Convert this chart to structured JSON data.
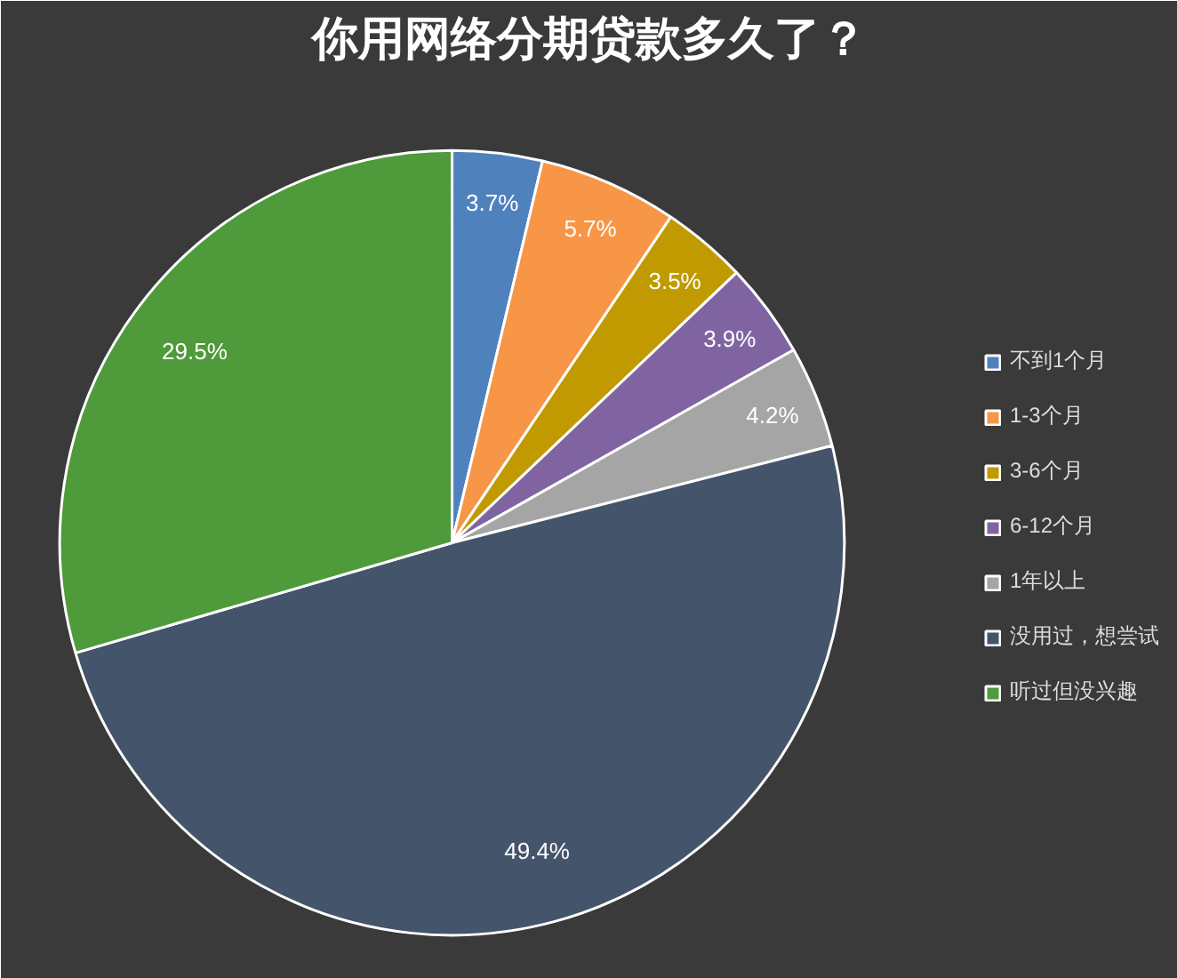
{
  "chart_data": {
    "type": "pie",
    "title": "你用网络分期贷款多久了？",
    "categories": [
      "不到1个月",
      "1-3个月",
      "3-6个月",
      "6-12个月",
      "1年以上",
      "没用过，想尝试",
      "听过但没兴趣"
    ],
    "values": [
      3.7,
      5.7,
      3.5,
      3.9,
      4.2,
      49.4,
      29.5
    ],
    "value_labels": [
      "3.7%",
      "5.7%",
      "3.5%",
      "3.9%",
      "4.2%",
      "49.4%",
      "29.5%"
    ],
    "colors": [
      "#4f81bd",
      "#f79646",
      "#c09a00",
      "#8064a2",
      "#a5a5a5",
      "#44546a",
      "#4f9a3a"
    ],
    "legend": "right"
  }
}
